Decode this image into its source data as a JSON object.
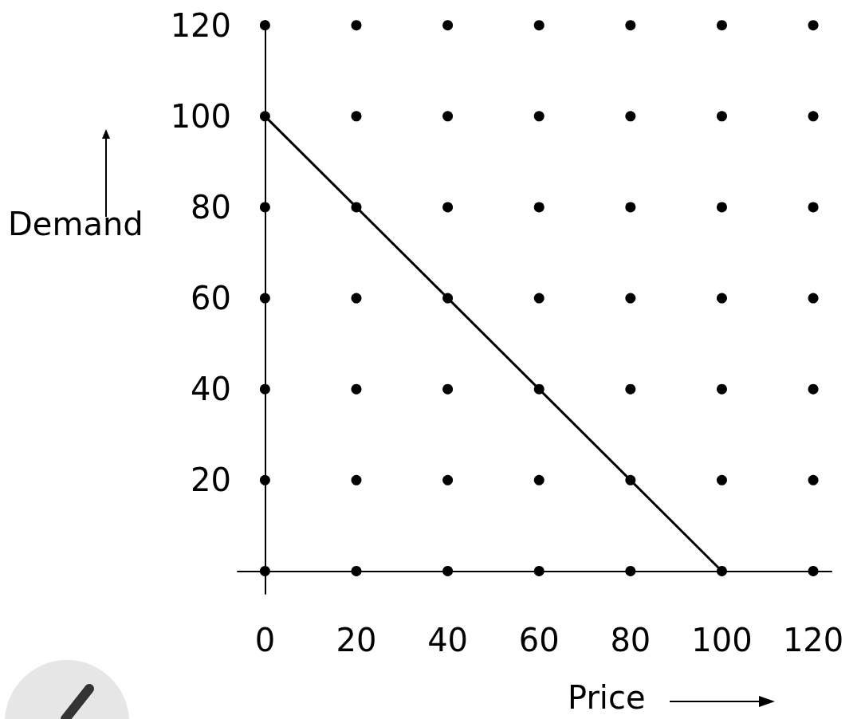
{
  "chart_data": {
    "type": "line",
    "xlabel": "Price",
    "ylabel": "Demand",
    "xlim": [
      -6,
      124
    ],
    "ylim": [
      -5,
      121
    ],
    "xticks": [
      0,
      20,
      40,
      60,
      80,
      100,
      120
    ],
    "yticks": [
      20,
      40,
      60,
      80,
      100,
      120
    ],
    "series": [
      {
        "type": "scatter",
        "color": "#000000",
        "marker": "circle",
        "x": [
          0,
          20,
          40,
          60,
          80,
          100,
          120,
          0,
          20,
          40,
          60,
          80,
          100,
          120,
          0,
          20,
          40,
          60,
          80,
          100,
          120,
          0,
          20,
          40,
          60,
          80,
          100,
          120,
          0,
          20,
          40,
          60,
          80,
          100,
          120,
          0,
          20,
          40,
          60,
          80,
          100,
          120,
          0,
          20,
          40,
          60,
          80,
          100,
          120
        ],
        "values": [
          0,
          0,
          0,
          0,
          0,
          0,
          0,
          20,
          20,
          20,
          20,
          20,
          20,
          20,
          40,
          40,
          40,
          40,
          40,
          40,
          40,
          60,
          60,
          60,
          60,
          60,
          60,
          60,
          80,
          80,
          80,
          80,
          80,
          80,
          80,
          100,
          100,
          100,
          100,
          100,
          100,
          100,
          120,
          120,
          120,
          120,
          120,
          120,
          120
        ]
      },
      {
        "type": "line",
        "color": "#000000",
        "marker": "none",
        "line_style": "solid",
        "x": [
          0,
          100
        ],
        "values": [
          100,
          0
        ]
      }
    ]
  }
}
